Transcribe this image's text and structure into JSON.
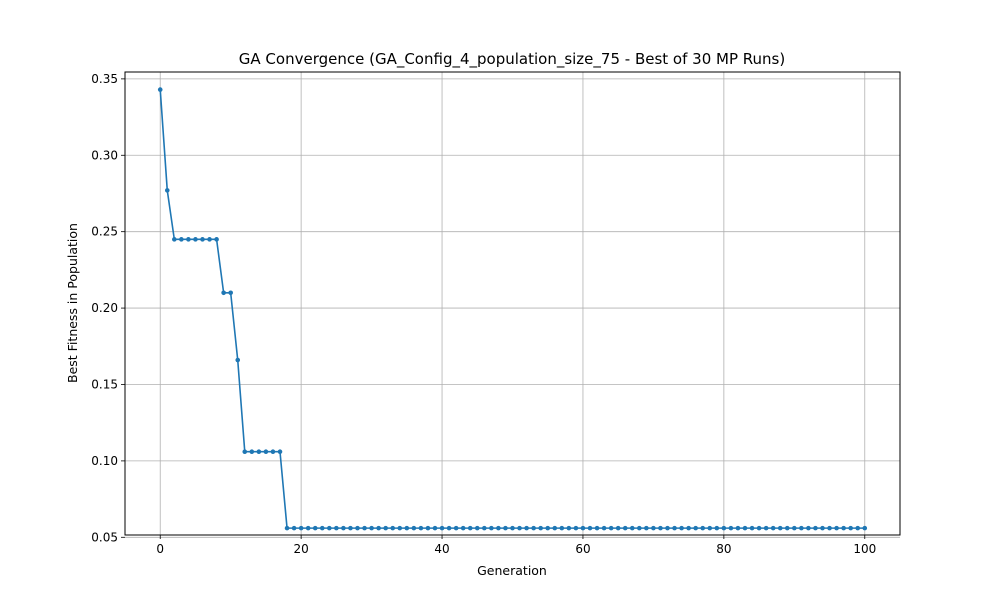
{
  "chart_data": {
    "type": "line",
    "title": "GA Convergence (GA_Config_4_population_size_75 - Best of 30 MP Runs)",
    "xlabel": "Generation",
    "ylabel": "Best Fitness in Population",
    "xlim": [
      -5,
      105
    ],
    "ylim": [
      0.0515,
      0.3545
    ],
    "x_ticks": [
      0,
      20,
      40,
      60,
      80,
      100
    ],
    "x_tick_labels": [
      "0",
      "20",
      "40",
      "60",
      "80",
      "100"
    ],
    "y_ticks": [
      0.05,
      0.1,
      0.15,
      0.2,
      0.25,
      0.3,
      0.35
    ],
    "y_tick_labels": [
      "0.05",
      "0.10",
      "0.15",
      "0.20",
      "0.25",
      "0.30",
      "0.35"
    ],
    "grid": true,
    "marker": "circle",
    "color": "#1f77b4",
    "series": [
      {
        "x": [
          0,
          1,
          2,
          3,
          4,
          5,
          6,
          7,
          8,
          9,
          10,
          11,
          12,
          13,
          14,
          15,
          16,
          17,
          18,
          19,
          20,
          21,
          22,
          23,
          24,
          25,
          26,
          27,
          28,
          29,
          30,
          31,
          32,
          33,
          34,
          35,
          36,
          37,
          38,
          39,
          40,
          41,
          42,
          43,
          44,
          45,
          46,
          47,
          48,
          49,
          50,
          51,
          52,
          53,
          54,
          55,
          56,
          57,
          58,
          59,
          60,
          61,
          62,
          63,
          64,
          65,
          66,
          67,
          68,
          69,
          70,
          71,
          72,
          73,
          74,
          75,
          76,
          77,
          78,
          79,
          80,
          81,
          82,
          83,
          84,
          85,
          86,
          87,
          88,
          89,
          90,
          91,
          92,
          93,
          94,
          95,
          96,
          97,
          98,
          99,
          100
        ],
        "y": [
          0.343,
          0.277,
          0.245,
          0.245,
          0.245,
          0.245,
          0.245,
          0.245,
          0.245,
          0.21,
          0.21,
          0.166,
          0.106,
          0.106,
          0.106,
          0.106,
          0.106,
          0.106,
          0.056,
          0.056,
          0.056,
          0.056,
          0.056,
          0.056,
          0.056,
          0.056,
          0.056,
          0.056,
          0.056,
          0.056,
          0.056,
          0.056,
          0.056,
          0.056,
          0.056,
          0.056,
          0.056,
          0.056,
          0.056,
          0.056,
          0.056,
          0.056,
          0.056,
          0.056,
          0.056,
          0.056,
          0.056,
          0.056,
          0.056,
          0.056,
          0.056,
          0.056,
          0.056,
          0.056,
          0.056,
          0.056,
          0.056,
          0.056,
          0.056,
          0.056,
          0.056,
          0.056,
          0.056,
          0.056,
          0.056,
          0.056,
          0.056,
          0.056,
          0.056,
          0.056,
          0.056,
          0.056,
          0.056,
          0.056,
          0.056,
          0.056,
          0.056,
          0.056,
          0.056,
          0.056,
          0.056,
          0.056,
          0.056,
          0.056,
          0.056,
          0.056,
          0.056,
          0.056,
          0.056,
          0.056,
          0.056,
          0.056,
          0.056,
          0.056,
          0.056,
          0.056,
          0.056,
          0.056,
          0.056,
          0.056,
          0.056
        ]
      }
    ]
  }
}
